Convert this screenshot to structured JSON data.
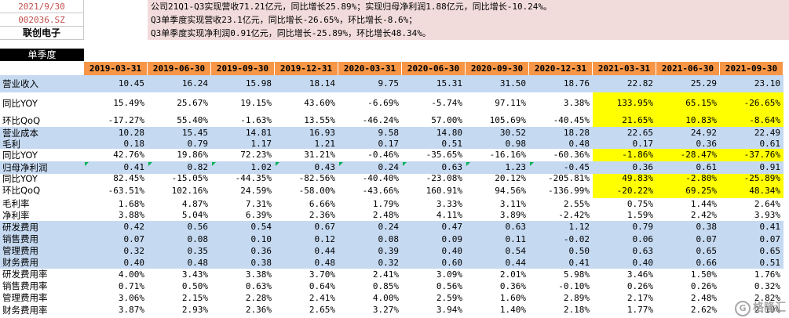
{
  "header": {
    "date": "2021/9/30",
    "code": "002036.SZ",
    "name": "联创电子"
  },
  "notes": [
    "公司21Q1-Q3实现营收71.21亿元，同比增长25.89%；实现归母净利润1.88亿元，同比增长-10.24%。",
    "Q3单季度实现营收23.1亿元，同比增长-26.65%，环比增长-8.6%；",
    "Q3单季度实现净利润0.91亿元，同比增长-25.89%，环比增长48.34%。"
  ],
  "section_label": "单季度",
  "columns": [
    "2019-03-31",
    "2019-06-30",
    "2019-09-30",
    "2019-12-31",
    "2020-03-31",
    "2020-06-30",
    "2020-09-30",
    "2020-12-31",
    "2021-03-31",
    "2021-06-30",
    "2021-09-30"
  ],
  "rows": [
    {
      "label": "营业收入",
      "values": [
        "10.45",
        "16.24",
        "15.98",
        "18.14",
        "9.75",
        "15.31",
        "31.50",
        "18.76",
        "22.82",
        "25.29",
        "23.10"
      ]
    },
    {
      "label": "同比YOY",
      "values": [
        "15.49%",
        "25.67%",
        "19.15%",
        "43.60%",
        "-6.69%",
        "-5.74%",
        "97.11%",
        "3.38%",
        "133.95%",
        "65.15%",
        "-26.65%"
      ]
    },
    {
      "label": "环比QoQ",
      "values": [
        "-17.27%",
        "55.40%",
        "-1.63%",
        "13.55%",
        "-46.24%",
        "57.00%",
        "105.69%",
        "-40.45%",
        "21.65%",
        "10.83%",
        "-8.64%"
      ]
    },
    {
      "label": "营业成本",
      "values": [
        "10.28",
        "15.45",
        "14.81",
        "16.93",
        "9.58",
        "14.80",
        "30.52",
        "18.28",
        "22.65",
        "24.92",
        "22.49"
      ]
    },
    {
      "label": "毛利",
      "values": [
        "0.18",
        "0.79",
        "1.17",
        "1.21",
        "0.17",
        "0.51",
        "0.98",
        "0.48",
        "0.17",
        "0.36",
        "0.61"
      ]
    },
    {
      "label": "同比YOY",
      "values": [
        "42.76%",
        "19.86%",
        "72.23%",
        "31.21%",
        "-0.46%",
        "-35.65%",
        "-16.16%",
        "-60.36%",
        "-1.86%",
        "-28.47%",
        "-37.76%"
      ]
    },
    {
      "label": "归母净利润",
      "values": [
        "0.41",
        "0.82",
        "1.02",
        "0.43",
        "0.24",
        "0.63",
        "1.23",
        "-0.45",
        "0.36",
        "0.61",
        "0.91"
      ]
    },
    {
      "label": "同比YOY",
      "values": [
        "82.45%",
        "-15.05%",
        "-44.35%",
        "-82.56%",
        "-40.40%",
        "-23.08%",
        "20.12%",
        "-205.81%",
        "49.83%",
        "-2.80%",
        "-25.89%"
      ]
    },
    {
      "label": "环比QoQ",
      "values": [
        "-63.51%",
        "102.16%",
        "24.59%",
        "-58.00%",
        "-43.66%",
        "160.91%",
        "94.56%",
        "-136.99%",
        "-20.22%",
        "69.25%",
        "48.34%"
      ]
    },
    {
      "label": "毛利率",
      "values": [
        "1.68%",
        "4.87%",
        "7.31%",
        "6.66%",
        "1.79%",
        "3.33%",
        "3.11%",
        "2.55%",
        "0.75%",
        "1.44%",
        "2.64%"
      ]
    },
    {
      "label": "净利率",
      "values": [
        "3.88%",
        "5.04%",
        "6.39%",
        "2.36%",
        "2.48%",
        "4.11%",
        "3.89%",
        "-2.42%",
        "1.59%",
        "2.42%",
        "3.93%"
      ]
    },
    {
      "label": "研发费用",
      "values": [
        "0.42",
        "0.56",
        "0.54",
        "0.67",
        "0.24",
        "0.47",
        "0.63",
        "1.12",
        "0.79",
        "0.38",
        "0.41"
      ]
    },
    {
      "label": "销售费用",
      "values": [
        "0.07",
        "0.08",
        "0.10",
        "0.12",
        "0.08",
        "0.09",
        "0.11",
        "-0.02",
        "0.06",
        "0.07",
        "0.07"
      ]
    },
    {
      "label": "管理费用",
      "values": [
        "0.32",
        "0.35",
        "0.36",
        "0.44",
        "0.39",
        "0.40",
        "0.54",
        "0.50",
        "0.63",
        "0.65",
        "0.65"
      ]
    },
    {
      "label": "财务费用",
      "values": [
        "0.40",
        "0.48",
        "0.38",
        "0.48",
        "0.32",
        "0.60",
        "0.44",
        "0.41",
        "0.40",
        "0.66",
        "0.51"
      ]
    },
    {
      "label": "研发费用率",
      "values": [
        "4.00%",
        "3.43%",
        "3.38%",
        "3.70%",
        "2.41%",
        "3.09%",
        "2.01%",
        "5.98%",
        "3.46%",
        "1.50%",
        "1.76%"
      ]
    },
    {
      "label": "销售费用率",
      "values": [
        "0.71%",
        "0.50%",
        "0.63%",
        "0.64%",
        "0.85%",
        "0.56%",
        "0.36%",
        "-0.10%",
        "0.26%",
        "0.26%",
        "0.32%"
      ]
    },
    {
      "label": "管理费用率",
      "values": [
        "3.06%",
        "2.15%",
        "2.28%",
        "2.41%",
        "4.00%",
        "2.59%",
        "1.60%",
        "2.89%",
        "2.17%",
        "2.48%",
        "2.82%"
      ]
    },
    {
      "label": "财务费用率",
      "values": [
        "3.87%",
        "2.93%",
        "2.36%",
        "2.65%",
        "3.27%",
        "3.94%",
        "1.40%",
        "2.18%",
        "1.77%",
        "2.62%",
        "2.19%"
      ]
    }
  ],
  "watermark": "格隆汇",
  "colors": {
    "orange_header": "#f79646",
    "blue_row": "#c5d9f1",
    "highlight": "#ffff00",
    "note_bg": "#f2dcdb",
    "code_red": "#c0504d"
  }
}
